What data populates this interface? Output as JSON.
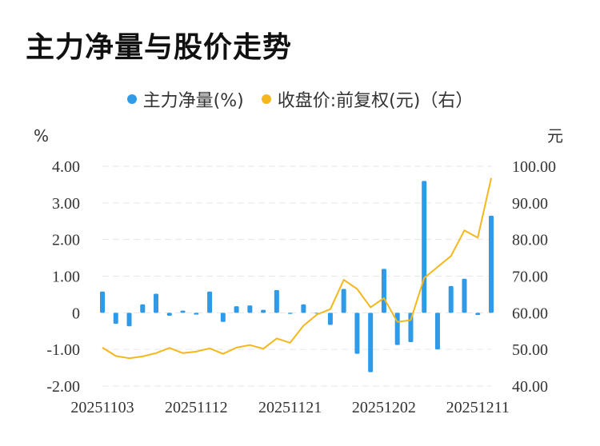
{
  "chart_data": {
    "type": "bar+line",
    "title": "主力净量与股价走势",
    "legend_position": "top-center",
    "grid": true,
    "left_unit": "%",
    "right_unit": "元",
    "ylim_left": [
      -2,
      4
    ],
    "ylim_right": [
      40,
      100
    ],
    "y_ticks_left": [
      "4.00",
      "3.00",
      "2.00",
      "1.00",
      "0",
      "-1.00",
      "-2.00"
    ],
    "y_ticks_right": [
      "100.00",
      "90.00",
      "80.00",
      "70.00",
      "60.00",
      "50.00",
      "40.00"
    ],
    "x_tick_labels": [
      {
        "index": 0,
        "label": "20251103"
      },
      {
        "index": 7,
        "label": "20251112"
      },
      {
        "index": 14,
        "label": "20251121"
      },
      {
        "index": 21,
        "label": "20251202"
      },
      {
        "index": 28,
        "label": "20251211"
      }
    ],
    "series": [
      {
        "name": "主力净量(%)",
        "type": "bar",
        "axis": "left",
        "color": "#2f9ae8",
        "values": [
          0.58,
          -0.3,
          -0.37,
          0.23,
          0.52,
          -0.08,
          0.06,
          -0.05,
          0.58,
          -0.25,
          0.18,
          0.2,
          0.08,
          0.62,
          -0.03,
          0.23,
          -0.02,
          -0.33,
          0.65,
          -1.12,
          -1.62,
          1.2,
          -0.88,
          -0.8,
          3.6,
          -1.0,
          0.73,
          0.93,
          -0.06,
          2.65
        ]
      },
      {
        "name": "收盘价:前复权(元)（右）",
        "type": "line",
        "axis": "right",
        "color": "#f5b81c",
        "values": [
          50.5,
          48.2,
          47.6,
          48.1,
          49.0,
          50.4,
          49.0,
          49.4,
          50.3,
          48.8,
          50.5,
          51.2,
          50.2,
          53.0,
          51.8,
          56.5,
          59.5,
          61.0,
          69.0,
          66.5,
          61.5,
          64.0,
          57.5,
          58.0,
          69.5,
          72.5,
          75.5,
          82.5,
          80.5,
          96.8
        ]
      }
    ]
  },
  "colors": {
    "bar": "#2f9ae8",
    "line": "#f5b81c",
    "grid": "#e6e6e6"
  }
}
